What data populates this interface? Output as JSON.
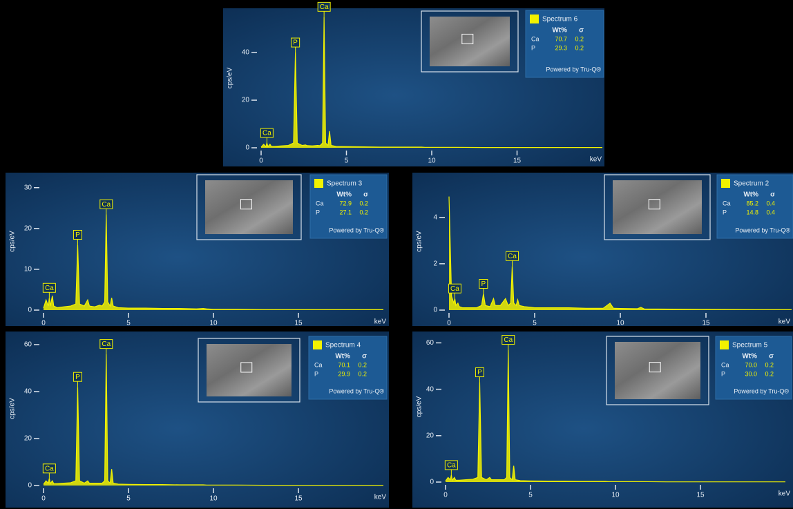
{
  "chart_data": [
    {
      "type": "area",
      "title": "Spectrum 6",
      "xlabel": "keV",
      "ylabel": "cps/eV",
      "color": "#f2f200",
      "x": [
        0,
        0.15,
        0.28,
        0.34,
        0.4,
        0.52,
        0.6,
        0.8,
        1.2,
        1.6,
        1.9,
        2.01,
        2.12,
        2.4,
        2.6,
        2.7,
        3.0,
        3.3,
        3.45,
        3.6,
        3.69,
        3.78,
        3.92,
        4.01,
        4.1,
        4.4,
        5,
        6,
        7,
        8,
        9,
        9.4,
        9.6,
        10,
        11,
        11.2,
        11.4,
        13,
        15,
        18,
        20
      ],
      "values": [
        0.3,
        1.5,
        0.5,
        2,
        0.5,
        1.5,
        0.6,
        0.6,
        0.8,
        1,
        2,
        40,
        2,
        1,
        1.2,
        0.9,
        0.8,
        1,
        0.9,
        2,
        55,
        2,
        1,
        7,
        1,
        0.6,
        0.5,
        0.4,
        0.3,
        0.3,
        0.3,
        0.3,
        0.2,
        0.2,
        0.2,
        0.2,
        0.2,
        0.1,
        0.1,
        0.1,
        0.1
      ],
      "xlim": [
        0,
        20
      ],
      "ylim": [
        0,
        58
      ],
      "xticks": [
        0,
        5,
        10,
        15
      ],
      "yticks": [
        0,
        20,
        40
      ],
      "annotations": [
        {
          "text": "Ca",
          "x": 0.34
        },
        {
          "text": "P",
          "x": 2.01
        },
        {
          "text": "Ca",
          "x": 3.69
        }
      ],
      "table": {
        "header": [
          "Wt%",
          "σ"
        ],
        "rows": [
          [
            "Ca",
            "70.7",
            "0.2"
          ],
          [
            "P",
            "29.3",
            "0.2"
          ]
        ]
      },
      "footer": "Powered by Tru-Q®"
    },
    {
      "type": "area",
      "title": "Spectrum 3",
      "xlabel": "keV",
      "ylabel": "cps/eV",
      "color": "#f2f200",
      "x": [
        0,
        0.15,
        0.28,
        0.34,
        0.4,
        0.52,
        0.6,
        0.8,
        1.2,
        1.6,
        1.9,
        2.01,
        2.12,
        2.4,
        2.6,
        2.7,
        3.0,
        3.3,
        3.45,
        3.6,
        3.69,
        3.78,
        3.92,
        4.01,
        4.1,
        4.4,
        5,
        6,
        7,
        8,
        9,
        9.4,
        9.6,
        10,
        11,
        11.2,
        11.4,
        13,
        15,
        18,
        20
      ],
      "values": [
        0.5,
        2.5,
        1,
        3,
        1,
        3.5,
        1,
        0.6,
        0.8,
        1,
        1.5,
        16,
        1.5,
        1,
        2.5,
        1,
        0.8,
        1.2,
        1,
        2,
        23.5,
        2,
        1,
        3,
        1,
        0.6,
        0.5,
        0.5,
        0.4,
        0.4,
        0.3,
        0.4,
        0.3,
        0.2,
        0.2,
        0.2,
        0.2,
        0.1,
        0.1,
        0.1,
        0.1
      ],
      "xlim": [
        0,
        20
      ],
      "ylim": [
        0,
        33
      ],
      "xticks": [
        0,
        5,
        10,
        15
      ],
      "yticks": [
        0,
        10,
        20,
        30
      ],
      "annotations": [
        {
          "text": "Ca",
          "x": 0.34
        },
        {
          "text": "P",
          "x": 2.01
        },
        {
          "text": "Ca",
          "x": 3.69
        }
      ],
      "table": {
        "header": [
          "Wt%",
          "σ"
        ],
        "rows": [
          [
            "Ca",
            "72.9",
            "0.2"
          ],
          [
            "P",
            "27.1",
            "0.2"
          ]
        ]
      },
      "footer": "Powered by Tru-Q®"
    },
    {
      "type": "area",
      "title": "Spectrum 2",
      "xlabel": "keV",
      "ylabel": "cps/eV",
      "color": "#f2f200",
      "x": [
        0,
        0.15,
        0.28,
        0.34,
        0.4,
        0.52,
        0.6,
        0.8,
        1.2,
        1.6,
        1.9,
        2.01,
        2.12,
        2.4,
        2.6,
        2.7,
        3.0,
        3.3,
        3.45,
        3.6,
        3.69,
        3.78,
        3.92,
        4.01,
        4.1,
        4.4,
        5,
        6,
        7,
        8,
        9,
        9.4,
        9.6,
        10,
        11,
        11.2,
        11.4,
        13,
        15,
        18,
        20
      ],
      "values": [
        4.9,
        0.6,
        0.3,
        0.5,
        0.2,
        0.3,
        0.15,
        0.1,
        0.1,
        0.1,
        0.2,
        0.7,
        0.2,
        0.15,
        0.5,
        0.2,
        0.2,
        0.5,
        0.2,
        0.3,
        1.9,
        0.3,
        0.2,
        0.45,
        0.2,
        0.15,
        0.1,
        0.1,
        0.1,
        0.08,
        0.08,
        0.3,
        0.08,
        0.07,
        0.06,
        0.12,
        0.05,
        0.04,
        0.03,
        0.02,
        0.02
      ],
      "xlim": [
        0,
        20
      ],
      "ylim": [
        0,
        5.9
      ],
      "xticks": [
        0,
        5,
        10,
        15
      ],
      "yticks": [
        0,
        2,
        4
      ],
      "annotations": [
        {
          "text": "Ca",
          "x": 0.34
        },
        {
          "text": "P",
          "x": 2.01
        },
        {
          "text": "Ca",
          "x": 3.69
        }
      ],
      "table": {
        "header": [
          "Wt%",
          "σ"
        ],
        "rows": [
          [
            "Ca",
            "85.2",
            "0.4"
          ],
          [
            "P",
            "14.8",
            "0.4"
          ]
        ]
      },
      "footer": "Powered by Tru-Q®"
    },
    {
      "type": "area",
      "title": "Spectrum 4",
      "xlabel": "keV",
      "ylabel": "cps/eV",
      "color": "#f2f200",
      "x": [
        0,
        0.15,
        0.28,
        0.34,
        0.4,
        0.52,
        0.6,
        0.8,
        1.2,
        1.6,
        1.9,
        2.01,
        2.12,
        2.4,
        2.6,
        2.7,
        3.0,
        3.3,
        3.45,
        3.6,
        3.69,
        3.78,
        3.92,
        4.01,
        4.1,
        4.4,
        5,
        6,
        7,
        8,
        9,
        9.4,
        9.6,
        10,
        11,
        11.2,
        11.4,
        13,
        15,
        18,
        20
      ],
      "values": [
        0.5,
        2,
        1,
        3,
        0.8,
        2,
        0.8,
        0.8,
        1,
        1.2,
        2,
        42,
        2,
        1,
        2,
        1,
        1,
        1,
        1,
        2,
        56,
        2,
        1,
        7,
        1,
        0.6,
        0.5,
        0.4,
        0.4,
        0.3,
        0.3,
        0.3,
        0.2,
        0.2,
        0.2,
        0.2,
        0.2,
        0.1,
        0.1,
        0.1,
        0.1
      ],
      "xlim": [
        0,
        20
      ],
      "ylim": [
        0,
        65
      ],
      "xticks": [
        0,
        5,
        10,
        15
      ],
      "yticks": [
        0,
        20,
        40,
        60
      ],
      "annotations": [
        {
          "text": "Ca",
          "x": 0.34
        },
        {
          "text": "P",
          "x": 2.01
        },
        {
          "text": "Ca",
          "x": 3.69
        }
      ],
      "table": {
        "header": [
          "Wt%",
          "σ"
        ],
        "rows": [
          [
            "Ca",
            "70.1",
            "0.2"
          ],
          [
            "P",
            "29.9",
            "0.2"
          ]
        ]
      },
      "footer": "Powered by Tru-Q®"
    },
    {
      "type": "area",
      "title": "Spectrum 5",
      "xlabel": "keV",
      "ylabel": "cps/eV",
      "color": "#f2f200",
      "x": [
        0,
        0.15,
        0.28,
        0.34,
        0.4,
        0.52,
        0.6,
        0.8,
        1.2,
        1.6,
        1.9,
        2.01,
        2.12,
        2.4,
        2.6,
        2.7,
        3.0,
        3.3,
        3.45,
        3.6,
        3.69,
        3.78,
        3.92,
        4.01,
        4.1,
        4.4,
        5,
        6,
        7,
        8,
        9,
        9.4,
        9.6,
        10,
        11,
        11.2,
        11.4,
        13,
        15,
        18,
        20
      ],
      "values": [
        0.5,
        2,
        1,
        3,
        0.8,
        2,
        0.8,
        0.8,
        1,
        1.2,
        2,
        43,
        2,
        1,
        2,
        1,
        1,
        1,
        1,
        2,
        57,
        2,
        1,
        7,
        1,
        0.6,
        0.5,
        0.4,
        0.4,
        0.3,
        0.3,
        0.3,
        0.2,
        0.2,
        0.2,
        0.2,
        0.2,
        0.1,
        0.1,
        0.1,
        0.1
      ],
      "xlim": [
        0,
        20
      ],
      "ylim": [
        0,
        64
      ],
      "xticks": [
        0,
        5,
        10,
        15
      ],
      "yticks": [
        0,
        20,
        40,
        60
      ],
      "annotations": [
        {
          "text": "Ca",
          "x": 0.34
        },
        {
          "text": "P",
          "x": 2.01
        },
        {
          "text": "Ca",
          "x": 3.69
        }
      ],
      "table": {
        "header": [
          "Wt%",
          "σ"
        ],
        "rows": [
          [
            "Ca",
            "70.0",
            "0.2"
          ],
          [
            "P",
            "30.0",
            "0.2"
          ]
        ]
      },
      "footer": "Powered by Tru-Q®"
    }
  ]
}
